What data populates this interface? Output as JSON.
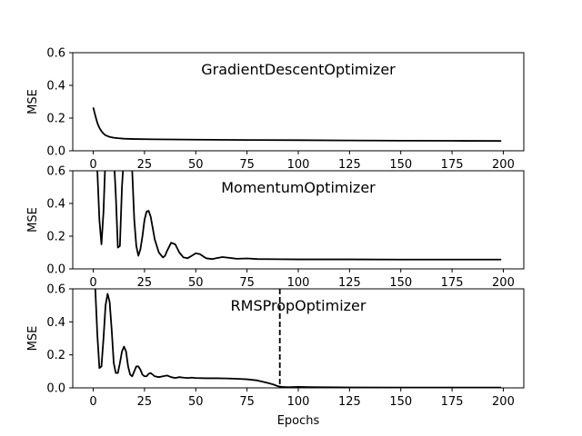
{
  "chart_data": [
    {
      "type": "line",
      "title": "GradientDescentOptimizer",
      "xlabel": "",
      "ylabel": "MSE",
      "xlim": [
        -10,
        210
      ],
      "ylim": [
        0,
        0.6
      ],
      "xticks": [
        0,
        25,
        50,
        75,
        100,
        125,
        150,
        175,
        200
      ],
      "yticks": [
        0.0,
        0.2,
        0.4,
        0.6
      ],
      "series": [
        {
          "color": "#000000",
          "x": [
            0,
            1,
            2,
            3,
            4,
            5,
            6,
            8,
            10,
            12,
            15,
            20,
            30,
            50,
            75,
            100,
            125,
            150,
            175,
            199
          ],
          "y": [
            0.265,
            0.215,
            0.17,
            0.14,
            0.12,
            0.105,
            0.095,
            0.085,
            0.08,
            0.077,
            0.074,
            0.072,
            0.07,
            0.068,
            0.066,
            0.065,
            0.063,
            0.062,
            0.061,
            0.06
          ]
        }
      ]
    },
    {
      "type": "line",
      "title": "MomentumOptimizer",
      "xlabel": "",
      "ylabel": "MSE",
      "xlim": [
        -10,
        210
      ],
      "ylim": [
        0,
        0.6
      ],
      "xticks": [
        0,
        25,
        50,
        75,
        100,
        125,
        150,
        175,
        200
      ],
      "yticks": [
        0.0,
        0.2,
        0.4,
        0.6
      ],
      "series": [
        {
          "color": "#000000",
          "x": [
            1,
            2,
            3,
            4,
            5,
            6,
            8,
            10,
            11,
            12,
            13,
            14,
            16,
            18,
            19,
            20,
            21,
            22,
            23,
            24,
            25,
            26,
            27,
            28,
            29,
            30,
            32,
            34,
            35,
            36,
            38,
            40,
            42,
            44,
            46,
            48,
            50,
            52,
            55,
            58,
            60,
            63,
            66,
            70,
            75,
            80,
            90,
            100,
            125,
            150,
            175,
            199
          ],
          "y": [
            0.7,
            0.6,
            0.3,
            0.15,
            0.35,
            0.7,
            0.8,
            0.7,
            0.45,
            0.13,
            0.14,
            0.5,
            0.9,
            0.75,
            0.6,
            0.3,
            0.14,
            0.08,
            0.12,
            0.2,
            0.3,
            0.35,
            0.355,
            0.32,
            0.25,
            0.18,
            0.1,
            0.07,
            0.08,
            0.11,
            0.16,
            0.15,
            0.1,
            0.07,
            0.065,
            0.08,
            0.095,
            0.09,
            0.065,
            0.06,
            0.065,
            0.072,
            0.068,
            0.062,
            0.064,
            0.06,
            0.059,
            0.058,
            0.058,
            0.057,
            0.057,
            0.057
          ]
        }
      ]
    },
    {
      "type": "line",
      "title": "RMSPropOptimizer",
      "xlabel": "Epochs",
      "ylabel": "MSE",
      "xlim": [
        -10,
        210
      ],
      "ylim": [
        0,
        0.6
      ],
      "xticks": [
        0,
        25,
        50,
        75,
        100,
        125,
        150,
        175,
        200
      ],
      "yticks": [
        0.0,
        0.2,
        0.4,
        0.6
      ],
      "vline": 91,
      "series": [
        {
          "color": "#000000",
          "x": [
            1,
            2,
            3,
            4,
            5,
            6,
            7,
            8,
            9,
            10,
            11,
            12,
            13,
            14,
            15,
            16,
            17,
            18,
            19,
            20,
            21,
            22,
            23,
            24,
            25,
            26,
            27,
            28,
            29,
            30,
            32,
            34,
            36,
            38,
            40,
            42,
            44,
            46,
            48,
            50,
            55,
            60,
            65,
            70,
            75,
            80,
            85,
            88,
            90,
            92,
            95,
            100,
            105,
            110,
            120,
            150,
            175,
            199
          ],
          "y": [
            0.6,
            0.32,
            0.12,
            0.13,
            0.3,
            0.5,
            0.57,
            0.52,
            0.35,
            0.15,
            0.09,
            0.09,
            0.15,
            0.22,
            0.25,
            0.22,
            0.13,
            0.08,
            0.07,
            0.1,
            0.13,
            0.13,
            0.11,
            0.08,
            0.07,
            0.07,
            0.085,
            0.09,
            0.08,
            0.07,
            0.065,
            0.07,
            0.075,
            0.065,
            0.06,
            0.065,
            0.062,
            0.06,
            0.062,
            0.06,
            0.058,
            0.058,
            0.057,
            0.055,
            0.052,
            0.045,
            0.03,
            0.02,
            0.01,
            0.006,
            0.004,
            0.006,
            0.005,
            0.004,
            0.003,
            0.002,
            0.002,
            0.002
          ]
        }
      ]
    }
  ]
}
